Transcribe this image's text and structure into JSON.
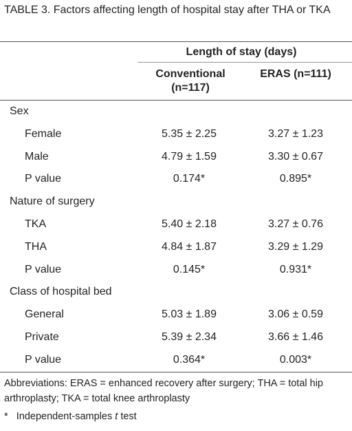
{
  "title": {
    "label": "TABLE 3.",
    "text": "Factors affecting length of hospital stay after THA or TKA"
  },
  "table": {
    "header": {
      "group": "Length of stay (days)",
      "columns": [
        "Conventional (n=117)",
        "ERAS (n=111)"
      ]
    },
    "sections": [
      {
        "label": "Sex",
        "rows": [
          [
            "Female",
            "5.35 ± 2.25",
            "3.27 ± 1.23"
          ],
          [
            "Male",
            "4.79 ± 1.59",
            "3.30 ± 0.67"
          ],
          [
            "P value",
            "0.174*",
            "0.895*"
          ]
        ]
      },
      {
        "label": "Nature of surgery",
        "rows": [
          [
            "TKA",
            "5.40 ± 2.18",
            "3.27 ± 0.76"
          ],
          [
            "THA",
            "4.84 ± 1.87",
            "3.29 ± 1.29"
          ],
          [
            "P value",
            "0.145*",
            "0.931*"
          ]
        ]
      },
      {
        "label": "Class of hospital bed",
        "rows": [
          [
            "General",
            "5.03 ± 1.89",
            "3.06 ± 0.59"
          ],
          [
            "Private",
            "5.39 ± 2.34",
            "3.66 ± 1.46"
          ],
          [
            "P value",
            "0.364*",
            "0.003*"
          ]
        ]
      }
    ]
  },
  "footnotes": {
    "abbreviations": "Abbreviations: ERAS = enhanced recovery after surgery; THA = total hip arthroplasty; TKA = total knee arthroplasty",
    "test": {
      "mark": "*",
      "before": "Independent-samples",
      "italic": "t",
      "after": "test"
    }
  }
}
